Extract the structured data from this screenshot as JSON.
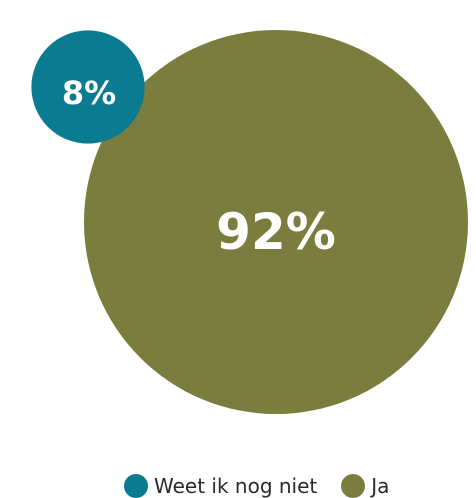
{
  "chart_data": {
    "type": "bubble",
    "title": "",
    "series": [
      {
        "name": "Weet ik nog niet",
        "value": 8,
        "label": "8%",
        "color": "#0b7b91"
      },
      {
        "name": "Ja",
        "value": 92,
        "label": "92%",
        "color": "#7a7d3d"
      }
    ],
    "legend": {
      "position": "bottom",
      "items": [
        "Weet ik nog niet",
        "Ja"
      ]
    }
  }
}
